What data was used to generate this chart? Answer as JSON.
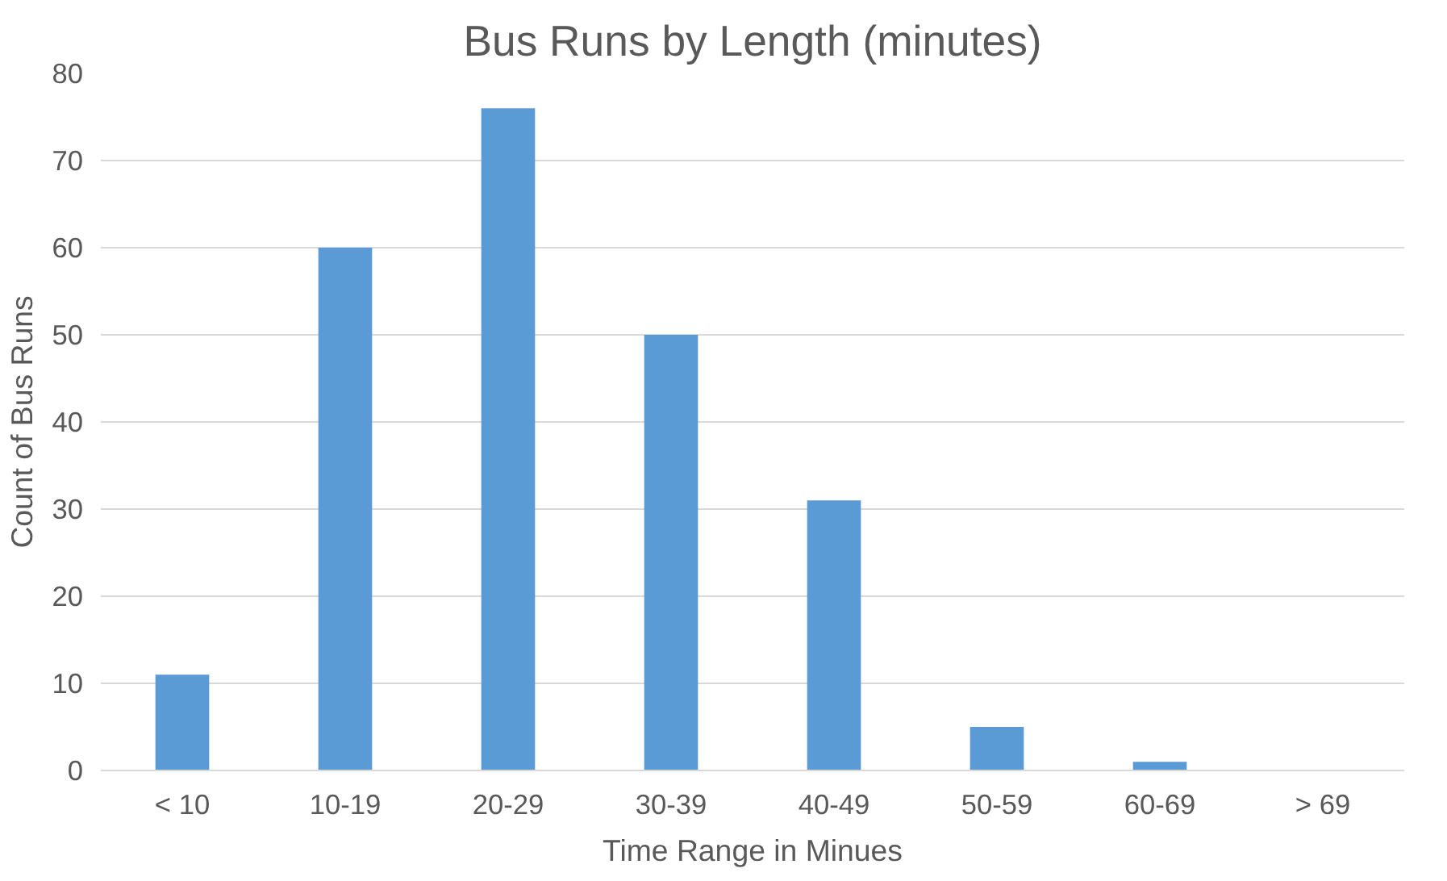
{
  "chart_data": {
    "type": "bar",
    "title": "Bus Runs by Length (minutes)",
    "xlabel": "Time Range in Minues",
    "ylabel": "Count of Bus Runs",
    "categories": [
      "< 10",
      "10-19",
      "20-29",
      "30-39",
      "40-49",
      "50-59",
      "60-69",
      "> 69"
    ],
    "values": [
      11,
      60,
      76,
      50,
      31,
      5,
      1,
      0
    ],
    "color": "#5b9bd5",
    "ylim": [
      0,
      80
    ],
    "yticks": [
      0,
      10,
      20,
      30,
      40,
      50,
      60,
      70,
      80
    ],
    "grid": "y"
  }
}
